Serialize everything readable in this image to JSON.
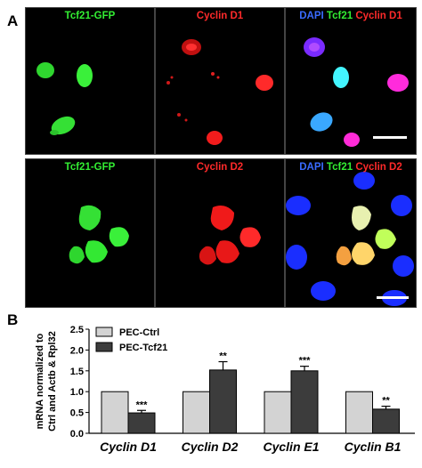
{
  "panel_a": {
    "letter": "A",
    "rows": [
      {
        "labels": [
          {
            "parts": [
              {
                "text": "Tcf21-GFP",
                "color": "#33ee33"
              }
            ]
          },
          {
            "parts": [
              {
                "text": "Cyclin D1",
                "color": "#ff2a2a"
              }
            ]
          },
          {
            "parts": [
              {
                "text": "DAPI",
                "color": "#3a6bff"
              },
              {
                "text": " Tcf21",
                "color": "#33ee33"
              },
              {
                "text": " Cyclin D1",
                "color": "#ff2a2a"
              }
            ]
          }
        ]
      },
      {
        "labels": [
          {
            "parts": [
              {
                "text": "Tcf21-GFP",
                "color": "#33ee33"
              }
            ]
          },
          {
            "parts": [
              {
                "text": "Cyclin D2",
                "color": "#ff2a2a"
              }
            ]
          },
          {
            "parts": [
              {
                "text": "DAPI",
                "color": "#3a6bff"
              },
              {
                "text": " Tcf21",
                "color": "#33ee33"
              },
              {
                "text": " Cyclin D2",
                "color": "#ff2a2a"
              }
            ]
          }
        ]
      }
    ]
  },
  "panel_b": {
    "letter": "B"
  },
  "chart_data": {
    "type": "bar",
    "categories": [
      "Cyclin D1",
      "Cyclin D2",
      "Cyclin  E1",
      "Cyclin B1"
    ],
    "series": [
      {
        "name": "PEC-Ctrl",
        "values": [
          1.0,
          1.0,
          1.0,
          1.0
        ],
        "errors": [
          0,
          0,
          0,
          0
        ],
        "color": "#d3d3d3"
      },
      {
        "name": "PEC-Tcf21",
        "values": [
          0.49,
          1.52,
          1.5,
          0.58
        ],
        "errors": [
          0.06,
          0.2,
          0.11,
          0.07
        ],
        "color": "#3c3c3c"
      }
    ],
    "significance": [
      "***",
      "**",
      "***",
      "**"
    ],
    "ylabel_lines": [
      "mRNA normalized to",
      "Ctrl and Actb & Rpl32"
    ],
    "ylim": [
      0,
      2.5
    ],
    "yticks": [
      "0.0",
      "0.5",
      "1.0",
      "1.5",
      "2.0",
      "2.5"
    ],
    "legend_position": "top-left",
    "grid": false
  }
}
